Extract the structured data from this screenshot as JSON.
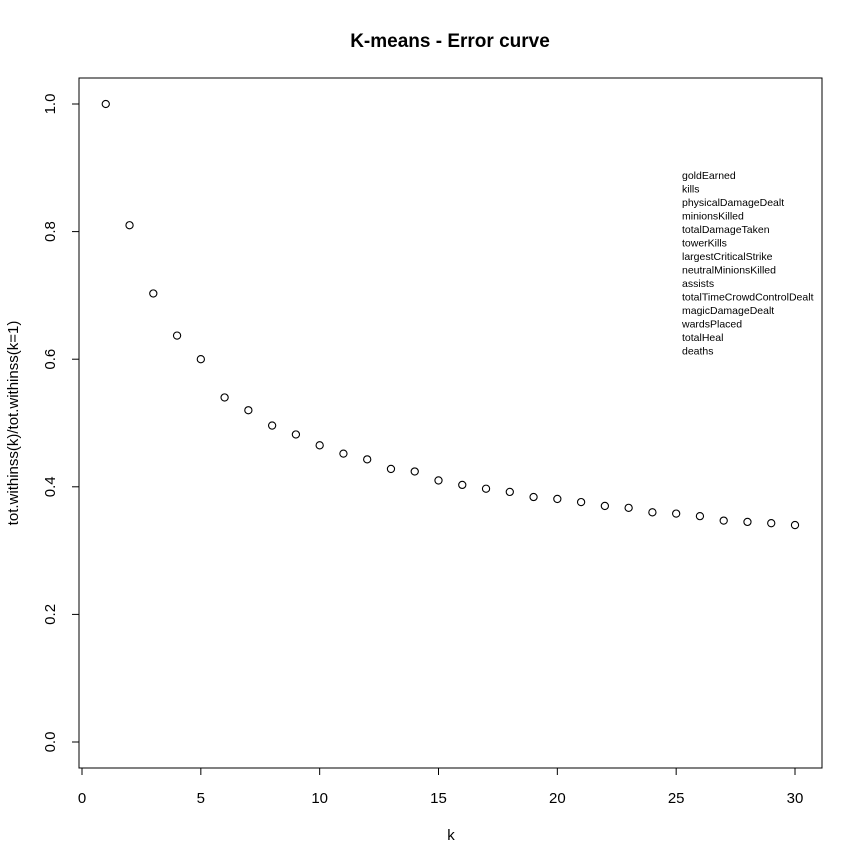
{
  "chart_data": {
    "type": "scatter",
    "title": "K-means - Error curve",
    "xlabel": "k",
    "ylabel": "tot.withinss(k)/tot.withinss(k=1)",
    "xlim": [
      0,
      31
    ],
    "ylim": [
      0,
      1
    ],
    "x_ticks": [
      0,
      5,
      10,
      15,
      20,
      25,
      30
    ],
    "x_tick_labels": [
      "0",
      "5",
      "10",
      "15",
      "20",
      "25",
      "30"
    ],
    "y_ticks": [
      0.0,
      0.2,
      0.4,
      0.6,
      0.8,
      1.0
    ],
    "y_tick_labels": [
      "0.0",
      "0.2",
      "0.4",
      "0.6",
      "0.8",
      "1.0"
    ],
    "grid": false,
    "series": [
      {
        "x": [
          1,
          2,
          3,
          4,
          5,
          6,
          7,
          8,
          9,
          10,
          11,
          12,
          13,
          14,
          15,
          16,
          17,
          18,
          19,
          20,
          21,
          22,
          23,
          24,
          25,
          26,
          27,
          28,
          29,
          30
        ],
        "y": [
          1.0,
          0.81,
          0.703,
          0.637,
          0.6,
          0.54,
          0.52,
          0.496,
          0.482,
          0.465,
          0.452,
          0.443,
          0.428,
          0.424,
          0.41,
          0.403,
          0.397,
          0.392,
          0.384,
          0.381,
          0.376,
          0.37,
          0.367,
          0.36,
          0.358,
          0.354,
          0.347,
          0.345,
          0.343,
          0.34
        ]
      }
    ],
    "annotation": {
      "placement": "upper-right inside plot",
      "lines": [
        "goldEarned",
        "kills",
        "physicalDamageDealt",
        "minionsKilled",
        "totalDamageTaken",
        "towerKills",
        "largestCriticalStrike",
        "neutralMinionsKilled",
        "assists",
        "totalTimeCrowdControlDealt",
        "magicDamageDealt",
        "wardsPlaced",
        "totalHeal",
        "deaths"
      ]
    }
  }
}
